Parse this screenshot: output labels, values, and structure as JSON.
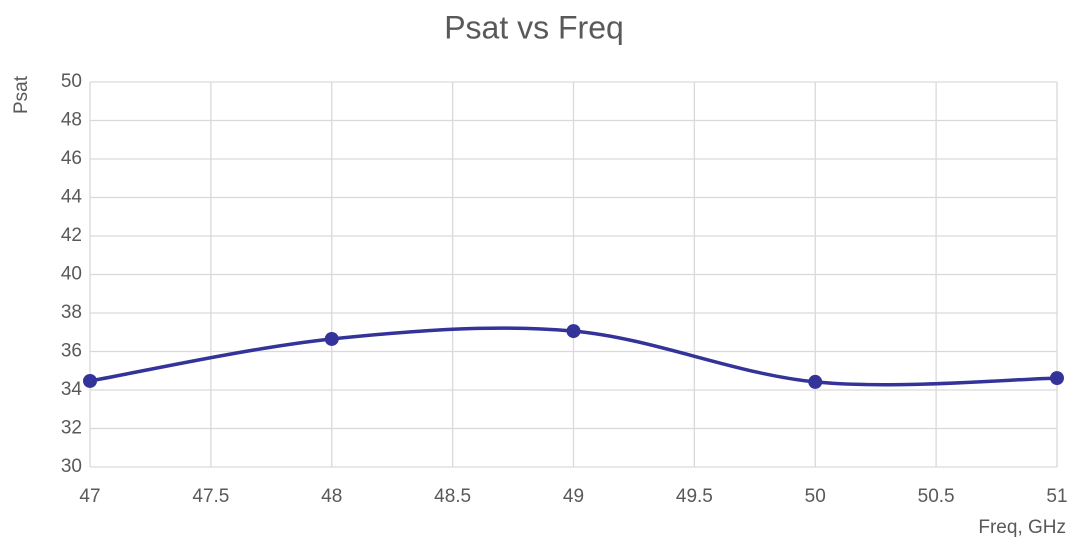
{
  "chart_data": {
    "type": "line",
    "title": "Psat vs Freq",
    "xlabel": "Freq, GHz",
    "ylabel": "Psat",
    "x": [
      47,
      48,
      49,
      50,
      51
    ],
    "values": [
      34.47,
      36.65,
      37.06,
      34.42,
      34.62
    ],
    "color": "#333399",
    "smooth": true,
    "markers": true,
    "xlim": [
      47,
      51
    ],
    "xticks": [
      47,
      47.5,
      48,
      48.5,
      49,
      49.5,
      50,
      50.5,
      51
    ],
    "ylim": [
      30,
      50
    ],
    "yticks": [
      30,
      32,
      34,
      36,
      38,
      40,
      42,
      44,
      46,
      48,
      50
    ],
    "grid": true
  }
}
